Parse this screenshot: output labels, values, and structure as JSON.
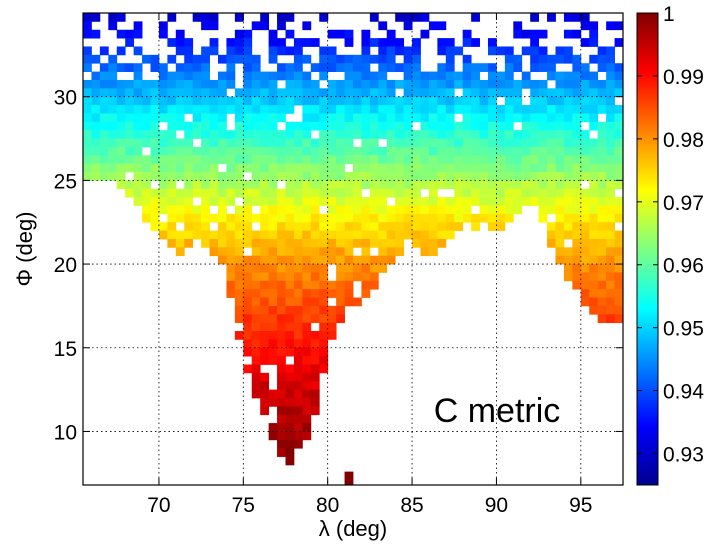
{
  "chart_data": {
    "type": "heatmap",
    "title": "",
    "xlabel": "λ (deg)",
    "ylabel": "Φ (deg)",
    "xlim": [
      65.5,
      97.5
    ],
    "ylim": [
      6.8,
      35.0
    ],
    "x_ticks": [
      "70",
      "75",
      "80",
      "85",
      "90",
      "95"
    ],
    "y_ticks": [
      "10",
      "15",
      "20",
      "25",
      "30"
    ],
    "grid": true,
    "colormap": "jet",
    "colorbar": {
      "range": [
        0.925,
        1.0
      ],
      "ticks": [
        "0.93",
        "0.94",
        "0.95",
        "0.96",
        "0.97",
        "0.98",
        "0.99",
        "1"
      ]
    },
    "annotation": "C metric",
    "cell_size_deg": 0.5,
    "colormap_stops": [
      {
        "pos": 0.0,
        "color": "#00008f"
      },
      {
        "pos": 0.125,
        "color": "#0000ff"
      },
      {
        "pos": 0.375,
        "color": "#00ffff"
      },
      {
        "pos": 0.625,
        "color": "#ffff00"
      },
      {
        "pos": 0.875,
        "color": "#ff0000"
      },
      {
        "pos": 1.0,
        "color": "#800000"
      }
    ],
    "coverage_boundary": [
      {
        "x": 65.5,
        "y_min": 25.0
      },
      {
        "x": 67.0,
        "y_min": 25.0
      },
      {
        "x": 68.0,
        "y_min": 24.5
      },
      {
        "x": 69.0,
        "y_min": 23.0
      },
      {
        "x": 70.0,
        "y_min": 22.0
      },
      {
        "x": 71.0,
        "y_min": 20.5
      },
      {
        "x": 72.0,
        "y_min": 21.5
      },
      {
        "x": 73.0,
        "y_min": 21.0
      },
      {
        "x": 74.0,
        "y_min": 19.5
      },
      {
        "x": 75.0,
        "y_min": 14.5
      },
      {
        "x": 76.0,
        "y_min": 11.5
      },
      {
        "x": 77.0,
        "y_min": 9.0
      },
      {
        "x": 77.5,
        "y_min": 8.0
      },
      {
        "x": 78.0,
        "y_min": 8.5
      },
      {
        "x": 79.0,
        "y_min": 10.0
      },
      {
        "x": 80.0,
        "y_min": 15.0
      },
      {
        "x": 81.0,
        "y_min": 17.0
      },
      {
        "x": 82.0,
        "y_min": 17.5
      },
      {
        "x": 83.0,
        "y_min": 19.0
      },
      {
        "x": 84.0,
        "y_min": 20.5
      },
      {
        "x": 85.0,
        "y_min": 21.0
      },
      {
        "x": 86.0,
        "y_min": 20.5
      },
      {
        "x": 87.0,
        "y_min": 21.5
      },
      {
        "x": 88.0,
        "y_min": 22.5
      },
      {
        "x": 89.0,
        "y_min": 22.0
      },
      {
        "x": 90.0,
        "y_min": 22.0
      },
      {
        "x": 91.0,
        "y_min": 22.5
      },
      {
        "x": 92.0,
        "y_min": 24.0
      },
      {
        "x": 93.0,
        "y_min": 21.5
      },
      {
        "x": 94.0,
        "y_min": 19.5
      },
      {
        "x": 95.0,
        "y_min": 18.0
      },
      {
        "x": 96.0,
        "y_min": 16.5
      },
      {
        "x": 97.5,
        "y_min": 16.5
      }
    ],
    "value_model": {
      "description": "C value decreases with latitude Φ; valid cells lie above coverage_boundary",
      "value_vs_phi": [
        {
          "phi": 8.0,
          "value": 0.999
        },
        {
          "phi": 12.0,
          "value": 0.995
        },
        {
          "phi": 16.0,
          "value": 0.988
        },
        {
          "phi": 20.0,
          "value": 0.98
        },
        {
          "phi": 23.0,
          "value": 0.972
        },
        {
          "phi": 26.0,
          "value": 0.962
        },
        {
          "phi": 29.0,
          "value": 0.952
        },
        {
          "phi": 31.0,
          "value": 0.945
        },
        {
          "phi": 33.0,
          "value": 0.937
        },
        {
          "phi": 35.0,
          "value": 0.93
        }
      ],
      "isolated_points": [
        {
          "x": 81.0,
          "y": 7.0,
          "value": 1.0
        }
      ]
    }
  }
}
